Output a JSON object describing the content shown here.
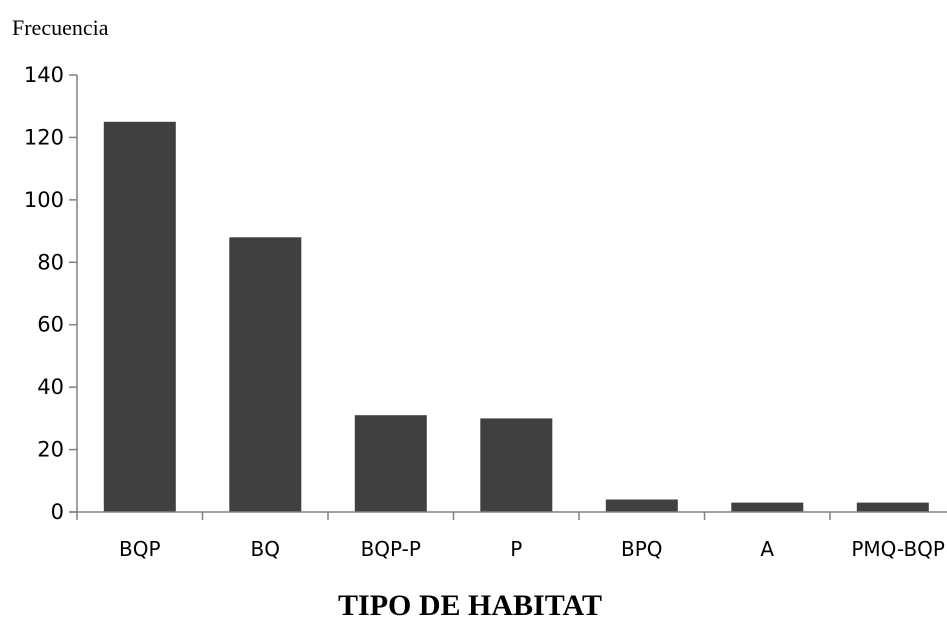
{
  "chart_data": {
    "type": "bar",
    "title": "",
    "ylabel": "Frecuencia",
    "xlabel": "TIPO DE HABITAT",
    "categories": [
      "BQP",
      "BQ",
      "BQP-P",
      "P",
      "BPQ",
      "A",
      "PMQ-BQP"
    ],
    "values": [
      125,
      88,
      31,
      30,
      4,
      3,
      3
    ],
    "ylim": [
      0,
      140
    ],
    "yticks": [
      "0",
      "20",
      "40",
      "60",
      "80",
      "100",
      "120",
      "140"
    ],
    "grid": false,
    "legend": "none",
    "colors": {
      "bar": "#404040",
      "axis": "#808080"
    }
  }
}
